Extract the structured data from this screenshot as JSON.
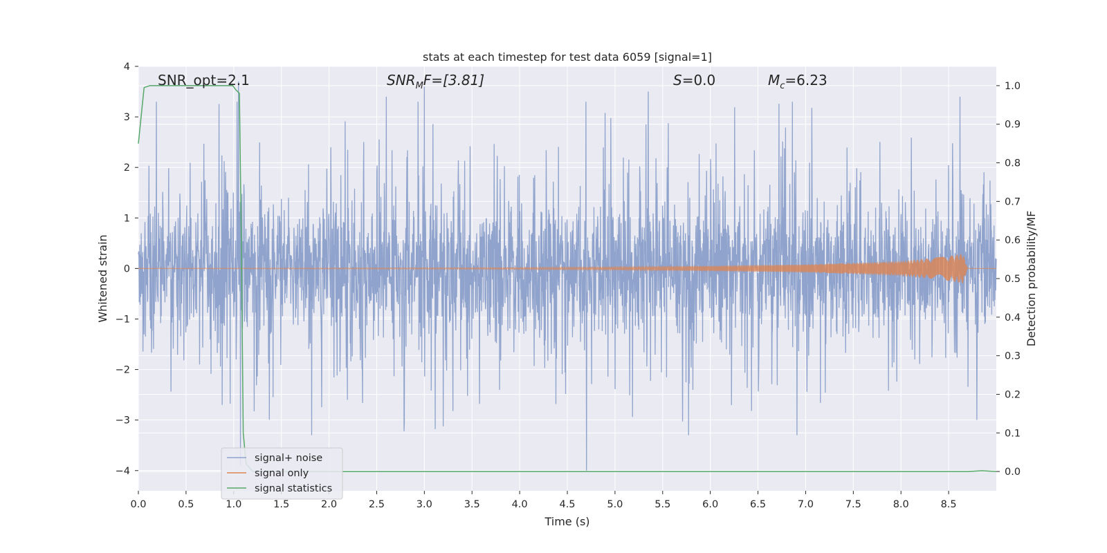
{
  "chart_data": {
    "type": "line",
    "title": "stats at each timestep for test data 6059 [signal=1]",
    "xlabel": "Time (s)",
    "ylabel": "Whitened strain",
    "ylabel_right": "Detection probability/MF",
    "xlim": [
      0.0,
      9.0
    ],
    "ylim": [
      -4.4,
      4.0
    ],
    "ylim_right": [
      -0.05,
      1.05
    ],
    "x_ticks": [
      0.0,
      0.5,
      1.0,
      1.5,
      2.0,
      2.5,
      3.0,
      3.5,
      4.0,
      4.5,
      5.0,
      5.5,
      6.0,
      6.5,
      7.0,
      7.5,
      8.0,
      8.5
    ],
    "x_tick_labels": [
      "0.0",
      "0.5",
      "1.0",
      "1.5",
      "2.0",
      "2.5",
      "3.0",
      "3.5",
      "4.0",
      "4.5",
      "5.0",
      "5.5",
      "6.0",
      "6.5",
      "7.0",
      "7.5",
      "8.0",
      "8.5"
    ],
    "y_ticks": [
      -4,
      -3,
      -2,
      -1,
      0,
      1,
      2,
      3,
      4
    ],
    "y_tick_labels": [
      "−4",
      "−3",
      "−2",
      "−1",
      "0",
      "1",
      "2",
      "3",
      "4"
    ],
    "y_ticks_right": [
      0.0,
      0.1,
      0.2,
      0.3,
      0.4,
      0.5,
      0.6,
      0.7,
      0.8,
      0.9,
      1.0
    ],
    "y_tick_labels_right": [
      "0.0",
      "0.1",
      "0.2",
      "0.3",
      "0.4",
      "0.5",
      "0.6",
      "0.7",
      "0.8",
      "0.9",
      "1.0"
    ],
    "grid": true,
    "legend_position": "bottom-left",
    "annotations": {
      "snr_opt": "SNR_opt=2.1",
      "snr_mf": {
        "base": "SNR",
        "sub": "M",
        "rest": "F=[3.81]"
      },
      "s": {
        "var": "S",
        "rest": "=0.0"
      },
      "mc": {
        "base": "M",
        "sub": "c",
        "rest": "=6.23"
      }
    },
    "series": [
      {
        "name": "signal+ noise",
        "color": "#8fa3cc",
        "axis": "left",
        "kind": "noise-trace",
        "note_values": "dense whitened-strain noise, bulk within about ±1.7, peaks to about ±3.6",
        "x_range": [
          0.0,
          9.0
        ],
        "peaks": [
          {
            "x": 1.05,
            "y": 3.7
          },
          {
            "x": 1.07,
            "y": -3.9
          },
          {
            "x": 2.6,
            "y": 3.4
          },
          {
            "x": 3.0,
            "y": 3.6
          },
          {
            "x": 4.7,
            "y": -4.0
          },
          {
            "x": 5.35,
            "y": 3.5
          },
          {
            "x": 8.62,
            "y": 3.4
          }
        ]
      },
      {
        "name": "signal only",
        "color": "#dd8452",
        "axis": "left",
        "kind": "chirp",
        "envelope": [
          {
            "x": 0.0,
            "y": 0.005
          },
          {
            "x": 2.0,
            "y": 0.01
          },
          {
            "x": 4.0,
            "y": 0.02
          },
          {
            "x": 5.0,
            "y": 0.03
          },
          {
            "x": 6.0,
            "y": 0.05
          },
          {
            "x": 7.0,
            "y": 0.08
          },
          {
            "x": 7.5,
            "y": 0.11
          },
          {
            "x": 8.0,
            "y": 0.15
          },
          {
            "x": 8.3,
            "y": 0.2
          },
          {
            "x": 8.55,
            "y": 0.26
          },
          {
            "x": 8.65,
            "y": 0.3
          },
          {
            "x": 8.7,
            "y": 0.0
          },
          {
            "x": 9.0,
            "y": 0.0
          }
        ]
      },
      {
        "name": "signal statistics",
        "color": "#55a868",
        "axis": "right",
        "kind": "line",
        "x": [
          0.0,
          0.06,
          0.12,
          0.2,
          0.5,
          0.99,
          1.02,
          1.06,
          1.08,
          1.1,
          1.13,
          1.2,
          2.0,
          4.0,
          6.0,
          8.0,
          8.7,
          8.85,
          9.0
        ],
        "y": [
          0.85,
          0.995,
          1.0,
          1.0,
          1.0,
          1.0,
          0.99,
          0.98,
          0.6,
          0.1,
          0.02,
          0.0,
          0.0,
          0.0,
          0.0,
          0.0,
          0.0,
          0.002,
          0.0
        ]
      }
    ]
  }
}
